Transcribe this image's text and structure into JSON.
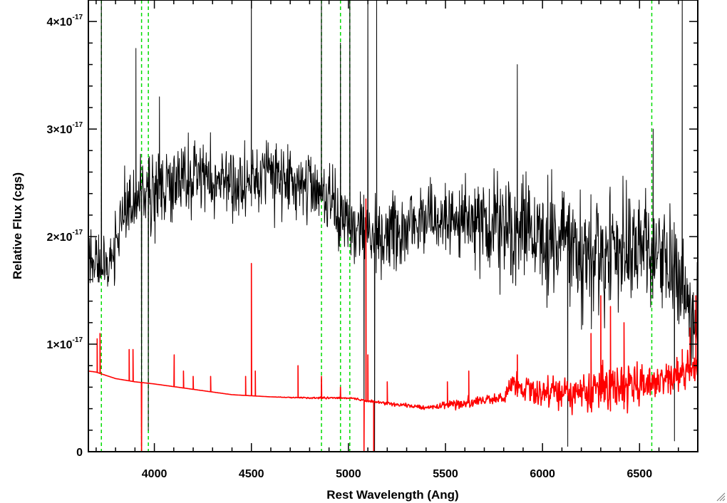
{
  "chart_data": {
    "type": "line",
    "title": "",
    "xlabel": "Rest Wavelength (Ang)",
    "ylabel": "Relative Flux (cgs)",
    "xlim": [
      3660,
      6800
    ],
    "ylim": [
      0,
      4.2e-17
    ],
    "x_ticks": [
      {
        "value": 4000,
        "label": "4000"
      },
      {
        "value": 4500,
        "label": "4500"
      },
      {
        "value": 5000,
        "label": "5000"
      },
      {
        "value": 5500,
        "label": "5500"
      },
      {
        "value": 6000,
        "label": "6000"
      },
      {
        "value": 6500,
        "label": "6500"
      }
    ],
    "y_ticks": [
      {
        "value": 0,
        "mantissa": "0",
        "exponent": ""
      },
      {
        "value": 1e-17,
        "mantissa": "1×10",
        "exponent": "-17"
      },
      {
        "value": 2e-17,
        "mantissa": "2×10",
        "exponent": "-17"
      },
      {
        "value": 3e-17,
        "mantissa": "3×10",
        "exponent": "-17"
      },
      {
        "value": 4e-17,
        "mantissa": "4×10",
        "exponent": "-17"
      }
    ],
    "grid": false,
    "vertical_lines": {
      "color": "#00dd00",
      "style": "dashed",
      "x": [
        3727,
        3934,
        3969,
        4861,
        4959,
        5007,
        6563
      ]
    },
    "series": [
      {
        "color": "#000000",
        "style": "noisy",
        "x": [
          3660,
          3750,
          3850,
          3950,
          4050,
          4200,
          4400,
          4600,
          4800,
          5000,
          5200,
          5400,
          5600,
          5800,
          6000,
          6200,
          6400,
          6600,
          6800
        ],
        "y": [
          1.8e-17,
          1.7e-17,
          2.2e-17,
          2.4e-17,
          2.5e-17,
          2.55e-17,
          2.5e-17,
          2.55e-17,
          2.5e-17,
          2.1e-17,
          2e-17,
          2.15e-17,
          2.15e-17,
          2.05e-17,
          2e-17,
          1.8e-17,
          1.9e-17,
          1.85e-17,
          1.2e-17
        ],
        "noise": [
          3e-18,
          3e-18,
          4e-18,
          4e-18,
          4.5e-18,
          4e-18,
          3.5e-18,
          3.5e-18,
          3.5e-18,
          3.5e-18,
          3.5e-18,
          3.5e-18,
          4e-18,
          5.5e-18,
          5.5e-18,
          6e-18,
          5.5e-18,
          5.5e-18,
          5e-18
        ],
        "spikes": [
          {
            "x": 3727,
            "y": 4.5e-17
          },
          {
            "x": 3905,
            "y": 3.75e-17
          },
          {
            "x": 3934,
            "y": 1e-18
          },
          {
            "x": 3969,
            "y": 2e-18
          },
          {
            "x": 4026,
            "y": 3.3e-17
          },
          {
            "x": 4500,
            "y": 4.5e-17
          },
          {
            "x": 4861,
            "y": 4.5e-17
          },
          {
            "x": 4959,
            "y": 3.8e-17
          },
          {
            "x": 5007,
            "y": 4.5e-17
          },
          {
            "x": 5080,
            "y": 0
          },
          {
            "x": 5100,
            "y": 4.5e-17
          },
          {
            "x": 5135,
            "y": 0
          },
          {
            "x": 5145,
            "y": 4.5e-17
          },
          {
            "x": 5870,
            "y": 3.6e-17
          },
          {
            "x": 6130,
            "y": 5e-19
          },
          {
            "x": 6570,
            "y": 3e-17
          },
          {
            "x": 6680,
            "y": 1e-18
          },
          {
            "x": 6720,
            "y": 4.5e-17
          }
        ]
      },
      {
        "color": "#ff0000",
        "style": "model",
        "x": [
          3660,
          3700,
          3800,
          3900,
          4000,
          4200,
          4400,
          4600,
          4800,
          5000,
          5200,
          5400,
          5600,
          5800,
          5850,
          6000,
          6200,
          6400,
          6600,
          6800
        ],
        "y": [
          7.5e-18,
          7.4e-18,
          6.8e-18,
          6.5e-18,
          6.3e-18,
          5.8e-18,
          5.3e-18,
          5.1e-18,
          5e-18,
          5e-18,
          4.5e-18,
          4.1e-18,
          4.5e-18,
          5e-18,
          6e-18,
          5.5e-18,
          5.5e-18,
          6e-18,
          6.5e-18,
          8e-18
        ],
        "noise": [
          0,
          0,
          0,
          0,
          0,
          0,
          0,
          0,
          1e-19,
          1e-19,
          2e-19,
          2e-19,
          5e-19,
          5e-19,
          1.5e-18,
          1.5e-18,
          2e-18,
          2.5e-18,
          1.5e-18,
          2e-18
        ],
        "spikes": [
          {
            "x": 3705,
            "y": 1.05e-17
          },
          {
            "x": 3720,
            "y": 1.1e-17
          },
          {
            "x": 3870,
            "y": 9.5e-18
          },
          {
            "x": 3890,
            "y": 9.5e-18
          },
          {
            "x": 3934,
            "y": 0
          },
          {
            "x": 4102,
            "y": 9e-18
          },
          {
            "x": 4150,
            "y": 7.5e-18
          },
          {
            "x": 4200,
            "y": 7e-18
          },
          {
            "x": 4290,
            "y": 7e-18
          },
          {
            "x": 4470,
            "y": 7e-18
          },
          {
            "x": 4500,
            "y": 1.75e-17
          },
          {
            "x": 4520,
            "y": 7.5e-18
          },
          {
            "x": 4740,
            "y": 8e-18
          },
          {
            "x": 4861,
            "y": 7e-18
          },
          {
            "x": 4959,
            "y": 6e-18
          },
          {
            "x": 5080,
            "y": 0
          },
          {
            "x": 5090,
            "y": 2.35e-17
          },
          {
            "x": 5100,
            "y": 9e-18
          },
          {
            "x": 5130,
            "y": 0
          },
          {
            "x": 5200,
            "y": 6.5e-18
          },
          {
            "x": 5510,
            "y": 6.5e-18
          },
          {
            "x": 5620,
            "y": 7.5e-18
          },
          {
            "x": 5870,
            "y": 9e-18
          },
          {
            "x": 6250,
            "y": 1.1e-17
          },
          {
            "x": 6300,
            "y": 1.45e-17
          },
          {
            "x": 6350,
            "y": 1.35e-17
          },
          {
            "x": 6420,
            "y": 1.2e-17
          },
          {
            "x": 6650,
            "y": 8e-18
          },
          {
            "x": 6720,
            "y": 9.5e-18
          },
          {
            "x": 6760,
            "y": 1.15e-17
          },
          {
            "x": 6790,
            "y": 1.45e-17
          }
        ]
      }
    ]
  }
}
